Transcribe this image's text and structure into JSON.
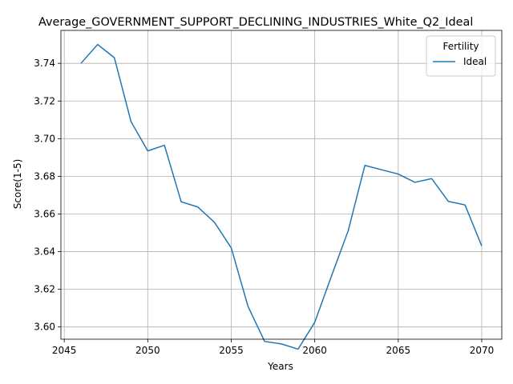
{
  "chart_data": {
    "type": "line",
    "title": "Average_GOVERNMENT_SUPPORT_DECLINING_INDUSTRIES_White_Q2_Ideal",
    "xlabel": "Years",
    "ylabel": "Score(1-5)",
    "xlim": [
      2044.8,
      2071.2
    ],
    "ylim": [
      3.5935,
      3.7575
    ],
    "xticks": [
      2045,
      2050,
      2055,
      2060,
      2065,
      2070
    ],
    "yticks": [
      3.6,
      3.62,
      3.64,
      3.66,
      3.68,
      3.7,
      3.72,
      3.74
    ],
    "ytick_labels": [
      "3.60",
      "3.62",
      "3.64",
      "3.66",
      "3.68",
      "3.70",
      "3.72",
      "3.74"
    ],
    "grid": true,
    "legend": {
      "title": "Fertility",
      "placement": "top-right"
    },
    "series": [
      {
        "name": "Ideal",
        "color": "#1f77b4",
        "x": [
          2046,
          2047,
          2048,
          2049,
          2050,
          2051,
          2052,
          2053,
          2054,
          2055,
          2056,
          2057,
          2058,
          2059,
          2060,
          2061,
          2062,
          2063,
          2064,
          2065,
          2066,
          2067,
          2068,
          2069,
          2070
        ],
        "values": [
          3.74,
          3.75,
          3.743,
          3.709,
          3.6935,
          3.6965,
          3.6665,
          3.6637,
          3.6555,
          3.642,
          3.611,
          3.5923,
          3.591,
          3.5882,
          3.6025,
          3.627,
          3.651,
          3.6858,
          3.6835,
          3.6812,
          3.6768,
          3.6788,
          3.6667,
          3.6648,
          3.643
        ]
      }
    ]
  }
}
